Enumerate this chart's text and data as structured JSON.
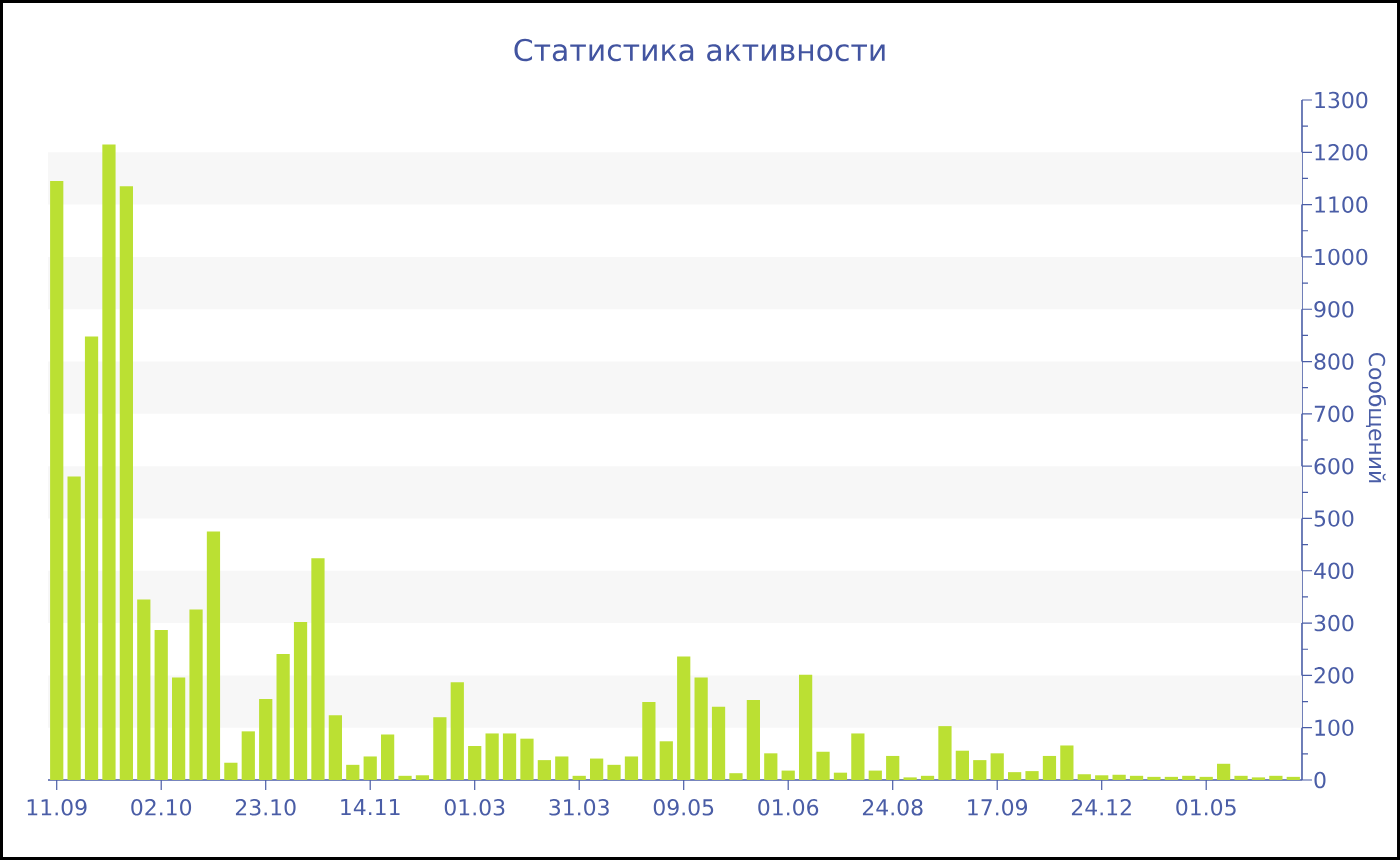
{
  "chart_data": {
    "type": "bar",
    "title": "Статистика активности",
    "ylabel": "Сообщений",
    "categories": [
      "11.09",
      null,
      null,
      null,
      null,
      null,
      "02.10",
      null,
      null,
      null,
      null,
      null,
      "23.10",
      null,
      null,
      null,
      null,
      null,
      "14.11",
      null,
      null,
      null,
      null,
      null,
      "01.03",
      null,
      null,
      null,
      null,
      null,
      "31.03",
      null,
      null,
      null,
      null,
      null,
      "09.05",
      null,
      null,
      null,
      null,
      null,
      "01.06",
      null,
      null,
      null,
      null,
      null,
      "24.08",
      null,
      null,
      null,
      null,
      null,
      "17.09",
      null,
      null,
      null,
      null,
      null,
      "24.12",
      null,
      null,
      null,
      null,
      null,
      "01.05",
      null,
      null,
      null,
      null,
      null
    ],
    "values": [
      1145,
      580,
      848,
      1215,
      1135,
      345,
      287,
      196,
      326,
      475,
      33,
      93,
      155,
      241,
      302,
      424,
      124,
      29,
      45,
      87,
      8,
      9,
      120,
      187,
      65,
      89,
      89,
      79,
      38,
      45,
      8,
      41,
      29,
      45,
      149,
      74,
      236,
      196,
      140,
      13,
      153,
      51,
      18,
      201,
      54,
      14,
      89,
      18,
      46,
      5,
      8,
      103,
      56,
      38,
      51,
      15,
      17,
      46,
      66,
      11,
      9,
      10,
      8,
      6,
      6,
      8,
      6,
      31,
      8,
      5,
      8,
      6
    ],
    "color": "#bbe033",
    "ylim": [
      0,
      1300
    ],
    "yticks": [
      0,
      100,
      200,
      300,
      400,
      500,
      600,
      700,
      800,
      900,
      1000,
      1100,
      1200,
      1300
    ],
    "bands": [
      {
        "axis": "y",
        "from": 100,
        "to": 200,
        "color": "#f7f7f7"
      },
      {
        "axis": "y",
        "from": 300,
        "to": 400,
        "color": "#f7f7f7"
      },
      {
        "axis": "y",
        "from": 500,
        "to": 600,
        "color": "#f7f7f7"
      },
      {
        "axis": "y",
        "from": 700,
        "to": 800,
        "color": "#f7f7f7"
      },
      {
        "axis": "y",
        "from": 900,
        "to": 1000,
        "color": "#f7f7f7"
      },
      {
        "axis": "y",
        "from": 1100,
        "to": 1200,
        "color": "#f7f7f7"
      }
    ]
  }
}
